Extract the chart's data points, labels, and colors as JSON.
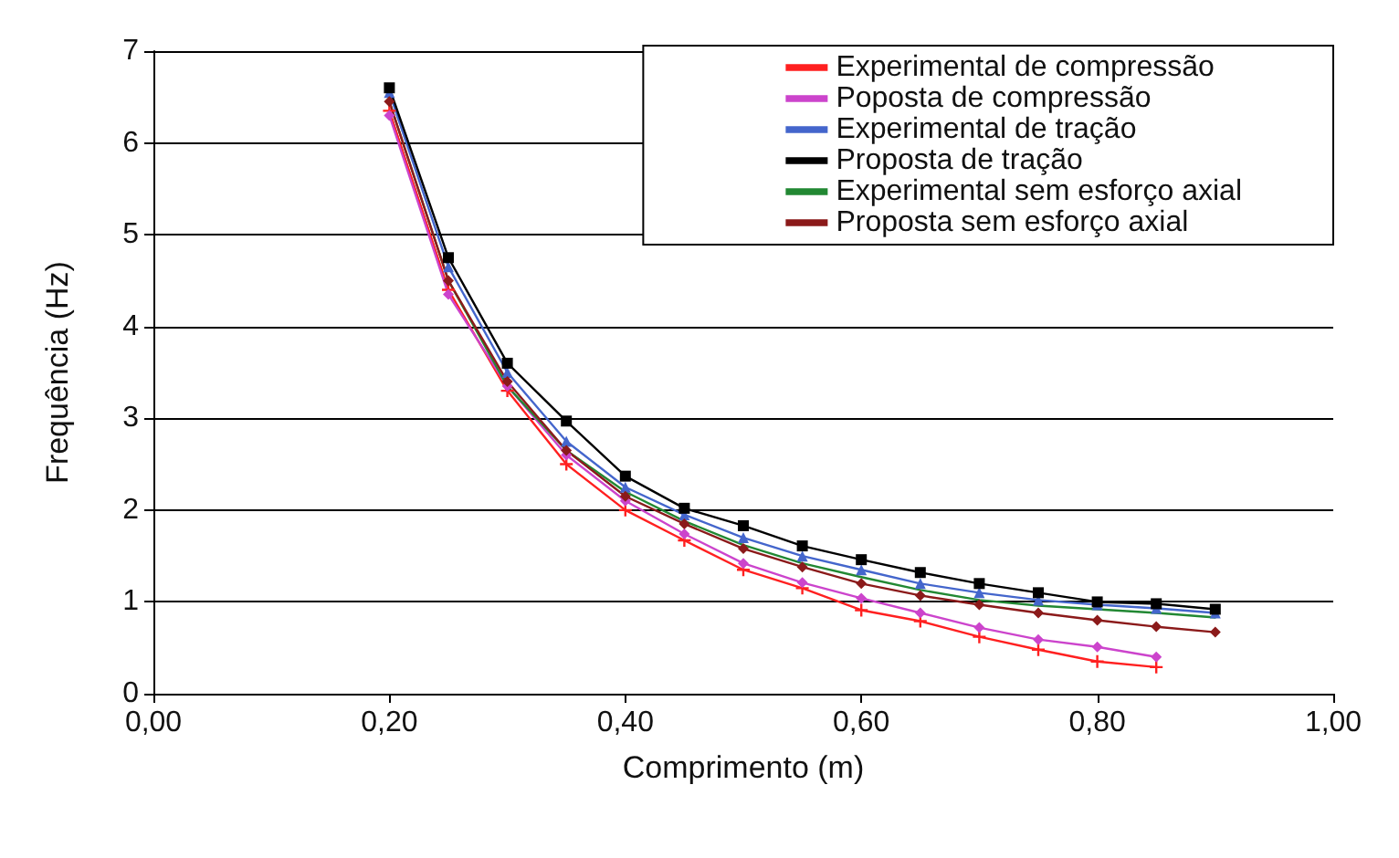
{
  "chart_data": {
    "type": "line",
    "xlabel": "Comprimento (m)",
    "ylabel": "Frequência (Hz)",
    "xlim": [
      0,
      1
    ],
    "xticks": [
      {
        "value": 0,
        "label": "0,00"
      },
      {
        "value": 0.2,
        "label": "0,20"
      },
      {
        "value": 0.4,
        "label": "0,40"
      },
      {
        "value": 0.6,
        "label": "0,60"
      },
      {
        "value": 0.8,
        "label": "0,80"
      },
      {
        "value": 1,
        "label": "1,00"
      }
    ],
    "ylim": [
      0,
      7
    ],
    "yticks": [
      0,
      1,
      2,
      3,
      4,
      5,
      6,
      7
    ],
    "grid": "y",
    "legend": "top right",
    "series": [
      {
        "name": "Experimental de compressão",
        "color": "#ff2020",
        "marker": "cross",
        "x": [
          0.2,
          0.25,
          0.3,
          0.35,
          0.4,
          0.45,
          0.5,
          0.55,
          0.6,
          0.65,
          0.7,
          0.75,
          0.8,
          0.85
        ],
        "values": [
          6.35,
          4.4,
          3.3,
          2.5,
          2.0,
          1.67,
          1.35,
          1.15,
          0.91,
          0.79,
          0.62,
          0.48,
          0.35,
          0.29
        ]
      },
      {
        "name": "Poposta de compressão",
        "color": "#cc44cc",
        "marker": "diamond",
        "x": [
          0.2,
          0.25,
          0.3,
          0.35,
          0.4,
          0.45,
          0.5,
          0.55,
          0.6,
          0.65,
          0.7,
          0.75,
          0.8,
          0.85
        ],
        "values": [
          6.3,
          4.35,
          3.35,
          2.6,
          2.1,
          1.74,
          1.42,
          1.21,
          1.04,
          0.88,
          0.72,
          0.59,
          0.51,
          0.4
        ]
      },
      {
        "name": "Experimental de tração",
        "color": "#4466cc",
        "marker": "triangle",
        "x": [
          0.2,
          0.25,
          0.3,
          0.35,
          0.4,
          0.45,
          0.5,
          0.55,
          0.6,
          0.65,
          0.7,
          0.75,
          0.8,
          0.85,
          0.9
        ],
        "values": [
          6.55,
          4.65,
          3.5,
          2.75,
          2.25,
          1.95,
          1.7,
          1.5,
          1.35,
          1.2,
          1.1,
          1.02,
          0.97,
          0.93,
          0.88
        ]
      },
      {
        "name": "Proposta de tração",
        "color": "#000000",
        "marker": "square",
        "x": [
          0.2,
          0.25,
          0.3,
          0.35,
          0.4,
          0.45,
          0.5,
          0.55,
          0.6,
          0.65,
          0.7,
          0.75,
          0.8,
          0.85,
          0.9
        ],
        "values": [
          6.6,
          4.75,
          3.6,
          2.97,
          2.37,
          2.02,
          1.83,
          1.61,
          1.46,
          1.32,
          1.2,
          1.1,
          1.0,
          0.98,
          0.92
        ]
      },
      {
        "name": "Experimental sem esforço axial",
        "color": "#228833",
        "marker": "none",
        "x": [
          0.2,
          0.25,
          0.3,
          0.35,
          0.4,
          0.45,
          0.5,
          0.55,
          0.6,
          0.65,
          0.7,
          0.75,
          0.8,
          0.85,
          0.9
        ],
        "values": [
          6.45,
          4.5,
          3.35,
          2.65,
          2.2,
          1.88,
          1.62,
          1.42,
          1.27,
          1.13,
          1.02,
          0.96,
          0.92,
          0.88,
          0.83
        ]
      },
      {
        "name": "Proposta sem esforço axial",
        "color": "#8b1a1a",
        "marker": "diamond",
        "x": [
          0.2,
          0.25,
          0.3,
          0.35,
          0.4,
          0.45,
          0.5,
          0.55,
          0.6,
          0.65,
          0.7,
          0.75,
          0.8,
          0.85,
          0.9
        ],
        "values": [
          6.45,
          4.5,
          3.4,
          2.65,
          2.15,
          1.85,
          1.58,
          1.38,
          1.2,
          1.07,
          0.97,
          0.88,
          0.8,
          0.73,
          0.67
        ]
      }
    ]
  }
}
